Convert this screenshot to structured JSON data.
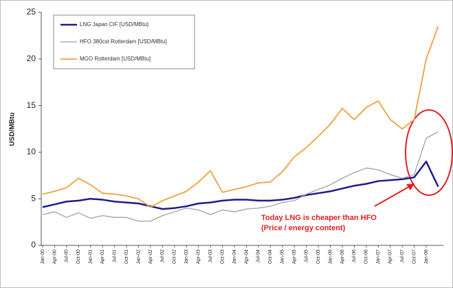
{
  "chart_data": {
    "type": "line",
    "ylabel": "USD/MBtu",
    "categories": [
      "Jan-00",
      "Apr-00",
      "Jul-00",
      "Oct-00",
      "Jan-01",
      "Apr-01",
      "Jul-01",
      "Oct-01",
      "Jan-02",
      "Apr-02",
      "Jul-02",
      "Oct-02",
      "Jan-03",
      "Apr-03",
      "Jul-03",
      "Oct-03",
      "Jan-04",
      "Apr-04",
      "Jul-04",
      "Oct-04",
      "Jan-05",
      "Apr-05",
      "Jul-05",
      "Oct-05",
      "Jan-06",
      "Apr-06",
      "Jul-06",
      "Oct-06",
      "Jan-07",
      "Apr-07",
      "Jul-07",
      "Oct-07",
      "Jan-08",
      null
    ],
    "series": [
      {
        "name": "LNG Japan CIF [USD/MBtu]",
        "color": "#1c1c8a",
        "width": 2.5,
        "values": [
          4.1,
          4.4,
          4.7,
          4.8,
          5.0,
          4.9,
          4.7,
          4.6,
          4.5,
          4.2,
          3.9,
          4.0,
          4.2,
          4.5,
          4.6,
          4.8,
          4.9,
          4.9,
          4.8,
          4.8,
          4.9,
          5.1,
          5.4,
          5.6,
          5.8,
          6.1,
          6.4,
          6.6,
          6.9,
          7.0,
          7.1,
          7.3,
          9.0,
          6.3
        ]
      },
      {
        "name": "HFO 380cst Rotterdam [USD/MBtu]",
        "color": "#a0a0a0",
        "width": 1.3,
        "values": [
          3.3,
          3.6,
          3.0,
          3.5,
          2.9,
          3.2,
          3.0,
          3.0,
          2.6,
          2.6,
          3.2,
          3.6,
          4.0,
          3.8,
          3.3,
          3.8,
          3.6,
          3.9,
          4.0,
          4.2,
          4.6,
          4.8,
          5.5,
          6.0,
          6.5,
          7.2,
          7.8,
          8.3,
          8.1,
          7.6,
          7.2,
          7.6,
          11.5,
          12.2
        ]
      },
      {
        "name": "MGO Rotterdam [USD/MBtu]",
        "color": "#f0a040",
        "width": 1.8,
        "values": [
          5.5,
          5.8,
          6.2,
          7.2,
          6.5,
          5.6,
          5.5,
          5.3,
          5.0,
          4.1,
          4.8,
          5.3,
          5.8,
          6.8,
          8.0,
          5.7,
          6.0,
          6.3,
          6.7,
          6.8,
          7.9,
          9.5,
          10.5,
          11.7,
          13.0,
          14.7,
          13.5,
          14.8,
          15.5,
          13.5,
          12.5,
          13.5,
          20.0,
          23.5
        ]
      }
    ],
    "annotations": [
      "Today LNG is cheaper than HFO",
      "(Price / energy content)"
    ],
    "ylim": [
      0,
      25
    ],
    "yticks": [
      0,
      5,
      10,
      15,
      20,
      25
    ],
    "legend": "upper left"
  }
}
